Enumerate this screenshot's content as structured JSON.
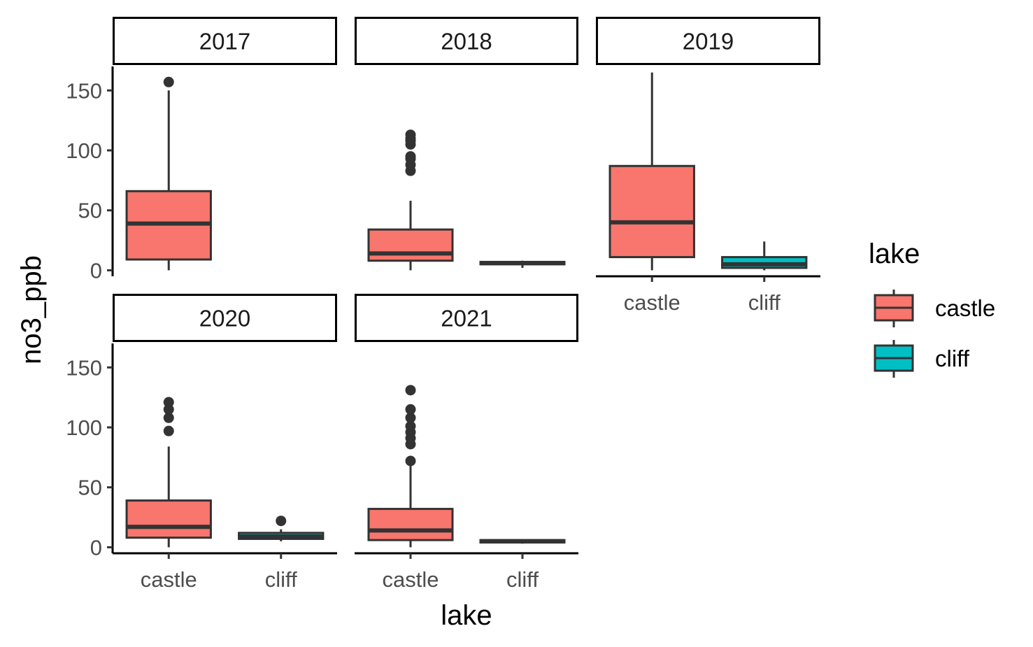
{
  "chart_data": {
    "type": "boxplot",
    "facet_var": "year",
    "xlabel": "lake",
    "ylabel": "no3_ppb",
    "ylim": [
      -5,
      170
    ],
    "yticks": [
      0,
      50,
      100,
      150
    ],
    "categories": [
      "castle",
      "cliff"
    ],
    "colors": {
      "castle": "#F8766D",
      "cliff": "#00BFC4",
      "outline": "#333333"
    },
    "legend": {
      "title": "lake",
      "position": "right",
      "entries": [
        {
          "label": "castle",
          "color": "#F8766D"
        },
        {
          "label": "cliff",
          "color": "#00BFC4"
        }
      ]
    },
    "grid": false,
    "panels": [
      {
        "label": "2017",
        "boxes": [
          {
            "category": "castle",
            "min": 0,
            "q1": 9,
            "median": 39,
            "q3": 66,
            "max": 150,
            "outliers": [
              157
            ]
          }
        ]
      },
      {
        "label": "2018",
        "boxes": [
          {
            "category": "castle",
            "min": 0,
            "q1": 8,
            "median": 14,
            "q3": 34,
            "max": 58,
            "outliers": [
              83,
              88,
              93,
              95,
              105,
              108,
              110,
              113
            ]
          },
          {
            "category": "cliff",
            "min": 2,
            "q1": 5,
            "median": 6,
            "q3": 7,
            "max": 8,
            "outliers": []
          }
        ]
      },
      {
        "label": "2019",
        "boxes": [
          {
            "category": "castle",
            "min": 0,
            "q1": 11,
            "median": 40,
            "q3": 87,
            "max": 165,
            "outliers": []
          },
          {
            "category": "cliff",
            "min": 0,
            "q1": 2,
            "median": 5,
            "q3": 11,
            "max": 24,
            "outliers": []
          }
        ]
      },
      {
        "label": "2020",
        "boxes": [
          {
            "category": "castle",
            "min": 0,
            "q1": 8,
            "median": 17,
            "q3": 39,
            "max": 84,
            "outliers": [
              97,
              108,
              115,
              121
            ]
          },
          {
            "category": "cliff",
            "min": 5,
            "q1": 7,
            "median": 9,
            "q3": 12,
            "max": 15,
            "outliers": [
              22
            ]
          }
        ]
      },
      {
        "label": "2021",
        "boxes": [
          {
            "category": "castle",
            "min": 0,
            "q1": 6,
            "median": 14,
            "q3": 32,
            "max": 70,
            "outliers": [
              72,
              86,
              91,
              96,
              101,
              108,
              115,
              131
            ]
          },
          {
            "category": "cliff",
            "min": 3,
            "q1": 4,
            "median": 5,
            "q3": 6,
            "max": 6,
            "outliers": []
          }
        ]
      }
    ]
  }
}
